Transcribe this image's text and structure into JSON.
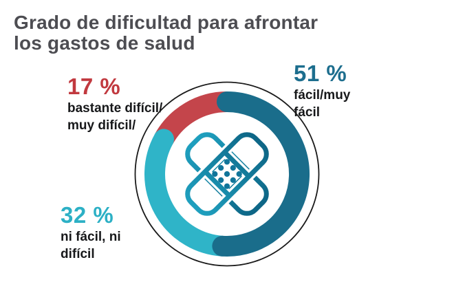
{
  "title": {
    "line1": "Grado de dificultad para afrontar",
    "line2": "los gastos de salud"
  },
  "chart_data": {
    "type": "donut",
    "title": "Grado de dificultad para afrontar los gastos de salud",
    "unit": "%",
    "start_angle_deg": -90,
    "direction": "clockwise",
    "legend_position": "around-chart",
    "segments": [
      {
        "name": "facil",
        "label": "fácil/muy fácil",
        "value": 51,
        "color": "#1a6d8b",
        "cap": "round"
      },
      {
        "name": "neutral",
        "label": "ni fácil, ni difícil",
        "value": 32,
        "color": "#2fb4c8",
        "cap": "round"
      },
      {
        "name": "dificil",
        "label": "bastante difícil/muy difícil",
        "value": 17,
        "color": "#c4454b",
        "cap": "butt"
      }
    ],
    "outer_outline_color": "#1a1a1a",
    "center_icon": "crossed-bandaids-icon",
    "icon_color_light": "#1fa0bf",
    "icon_color_dark": "#0d6585"
  },
  "labels": {
    "easy": {
      "pct": "51 %",
      "line1": "fácil/muy",
      "line2": "fácil",
      "color": "#1d6e8e"
    },
    "neutral": {
      "pct": "32 %",
      "line1": "ni fácil, ni",
      "line2": "difícil",
      "color": "#2cb0c5"
    },
    "hard": {
      "pct": "17 %",
      "line1": "bastante difícil/",
      "line2": "muy difícil/",
      "color": "#c1393f"
    }
  }
}
